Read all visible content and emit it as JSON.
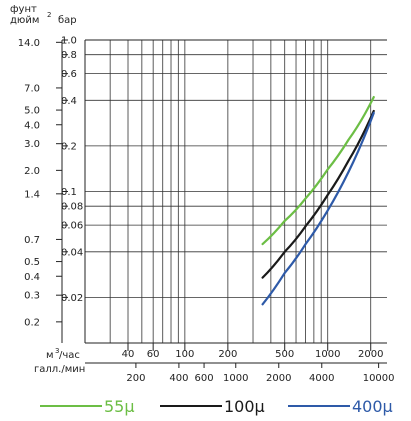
{
  "chart_data": {
    "type": "line",
    "y_units": {
      "left": "фунт/дюйм²",
      "right": "бар",
      "left_line1": "фунт",
      "left_line2": "дюйм",
      "left_sup": "2"
    },
    "x_units": {
      "top": "м³/час",
      "top_base": "м",
      "top_sup": "3",
      "top_rest": "/час",
      "bottom": "галл./мин"
    },
    "y_scale": "log",
    "x_scale": "log",
    "ylim_bar": [
      0.01,
      1.0
    ],
    "xlim_m3h": [
      20,
      2600
    ],
    "y_ticks_psi": [
      "14.0",
      "7.0",
      "5.0",
      "4.0",
      "3.0",
      "2.0",
      "1.4",
      "0.7",
      "0.5",
      "0.4",
      "0.3",
      "0.2"
    ],
    "y_ticks_bar": [
      "1.0",
      "0.8",
      "0.6",
      "0.4",
      "0.2",
      "0.1",
      "0.08",
      "0.06",
      "0.04",
      "0.02"
    ],
    "x_ticks_m3h": [
      "40",
      "60",
      "100",
      "200",
      "500",
      "1000",
      "2000"
    ],
    "x_ticks_gpm": [
      "200",
      "400",
      "600",
      "1000",
      "2000",
      "4000",
      "10000"
    ],
    "grid": true,
    "series": [
      {
        "name": "55µ",
        "color": "#6cbe45",
        "x": [
          350,
          500,
          700,
          1000,
          1400,
          2100
        ],
        "y": [
          0.045,
          0.064,
          0.09,
          0.14,
          0.22,
          0.42
        ]
      },
      {
        "name": "100µ",
        "color": "#1a1a1a",
        "x": [
          350,
          500,
          700,
          1000,
          1400,
          2100
        ],
        "y": [
          0.027,
          0.04,
          0.059,
          0.095,
          0.16,
          0.34
        ]
      },
      {
        "name": "400µ",
        "color": "#2e5aa8",
        "x": [
          350,
          500,
          700,
          1000,
          1400,
          2100
        ],
        "y": [
          0.018,
          0.029,
          0.045,
          0.075,
          0.135,
          0.33
        ]
      }
    ]
  }
}
